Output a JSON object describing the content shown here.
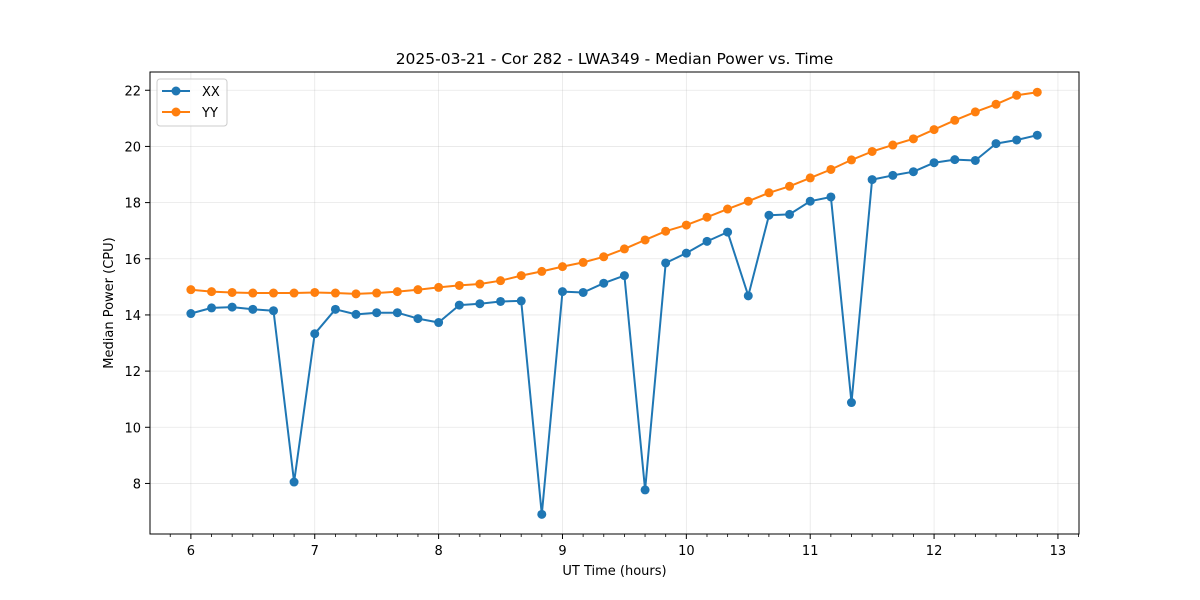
{
  "chart_data": {
    "type": "line",
    "title": "2025-03-21 - Cor 282 - LWA349 - Median Power vs. Time",
    "xlabel": "UT Time (hours)",
    "ylabel": "Median Power (CPU)",
    "xlim": [
      5.67,
      13.17
    ],
    "ylim": [
      6.2,
      22.65
    ],
    "x_ticks": [
      6,
      7,
      8,
      9,
      10,
      11,
      12,
      13
    ],
    "y_ticks": [
      8,
      10,
      12,
      14,
      16,
      18,
      20,
      22
    ],
    "grid": true,
    "legend_position": "upper-left",
    "x": [
      6.0,
      6.167,
      6.333,
      6.5,
      6.667,
      6.833,
      7.0,
      7.167,
      7.333,
      7.5,
      7.667,
      7.833,
      8.0,
      8.167,
      8.333,
      8.5,
      8.667,
      8.833,
      9.0,
      9.167,
      9.333,
      9.5,
      9.667,
      9.833,
      10.0,
      10.167,
      10.333,
      10.5,
      10.667,
      10.833,
      11.0,
      11.167,
      11.333,
      11.5,
      11.667,
      11.833,
      12.0,
      12.167,
      12.333,
      12.5,
      12.667,
      12.833
    ],
    "series": [
      {
        "name": "XX",
        "color": "#1f77b4",
        "values": [
          14.05,
          14.25,
          14.28,
          14.2,
          14.15,
          8.05,
          13.33,
          14.2,
          14.02,
          14.08,
          14.08,
          13.87,
          13.73,
          14.35,
          14.4,
          14.48,
          14.5,
          6.9,
          14.83,
          14.8,
          15.13,
          15.4,
          7.77,
          15.85,
          16.2,
          16.62,
          16.95,
          14.68,
          17.55,
          17.58,
          18.05,
          18.2,
          10.88,
          18.82,
          18.97,
          19.1,
          19.42,
          19.53,
          19.5,
          20.1,
          20.23,
          20.4
        ]
      },
      {
        "name": "YY",
        "color": "#ff7f0e",
        "values": [
          14.9,
          14.83,
          14.8,
          14.78,
          14.78,
          14.78,
          14.8,
          14.78,
          14.75,
          14.78,
          14.83,
          14.9,
          14.98,
          15.05,
          15.1,
          15.22,
          15.4,
          15.55,
          15.72,
          15.87,
          16.07,
          16.35,
          16.67,
          16.98,
          17.2,
          17.48,
          17.77,
          18.05,
          18.35,
          18.58,
          18.88,
          19.18,
          19.52,
          19.82,
          20.05,
          20.27,
          20.6,
          20.93,
          21.23,
          21.5,
          21.82,
          21.93
        ]
      }
    ]
  }
}
